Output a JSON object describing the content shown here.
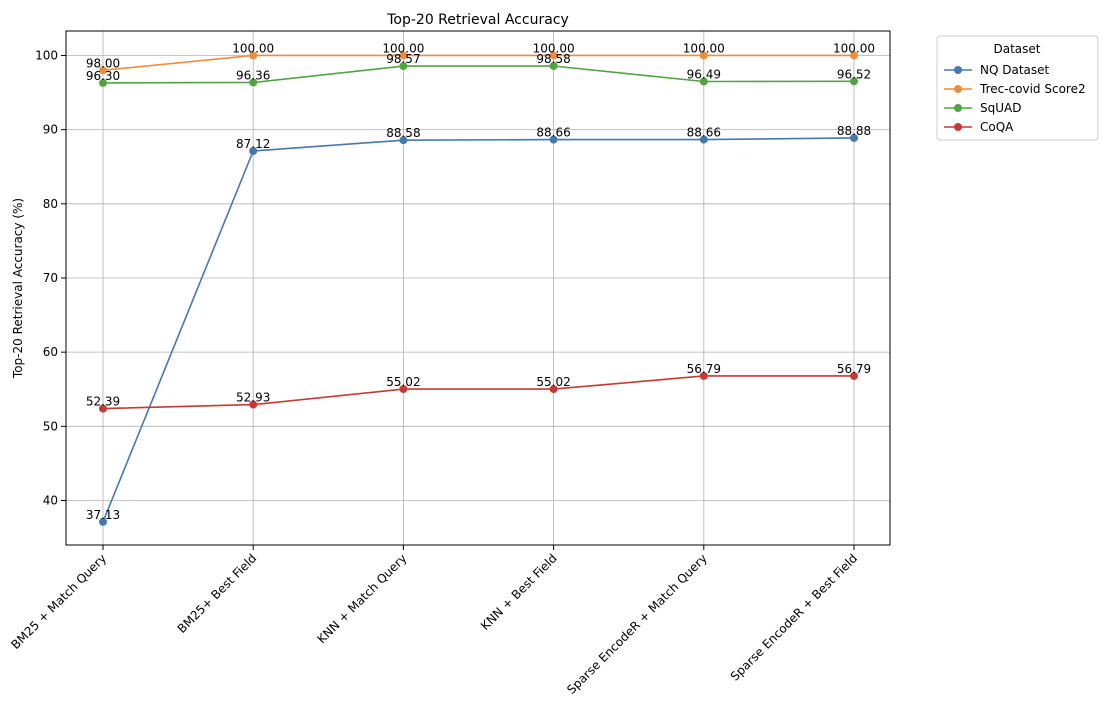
{
  "chart_data": {
    "type": "line",
    "title": "Top-20 Retrieval Accuracy",
    "xlabel": "",
    "ylabel": "Top-20 Retrieval Accuracy (%)",
    "categories": [
      "BM25 + Match Query",
      "BM25+ Best Field",
      "KNN + Match Query",
      "KNN + Best Field",
      "Sparse EncodeR + Match Query",
      "Sparse EncodeR + Best Field"
    ],
    "ylim": [
      34,
      103.3
    ],
    "yticks": [
      40,
      50,
      60,
      70,
      80,
      90,
      100
    ],
    "grid": true,
    "legend": {
      "title": "Dataset",
      "placement": "outside-top-right"
    },
    "series": [
      {
        "name": "NQ Dataset",
        "color": "#4479ae",
        "values": [
          37.13,
          87.12,
          88.58,
          88.66,
          88.66,
          88.88
        ],
        "labels": [
          "37.13",
          "87.12",
          "88.58",
          "88.66",
          "88.66",
          "88.88"
        ]
      },
      {
        "name": "Trec-covid Score2",
        "color": "#f08c3c",
        "values": [
          98.0,
          100.0,
          100.0,
          100.0,
          100.0,
          100.0
        ],
        "labels": [
          "98.00",
          "100.00",
          "100.00",
          "100.00",
          "100.00",
          "100.00"
        ]
      },
      {
        "name": "SqUAD",
        "color": "#52a343",
        "values": [
          96.3,
          96.36,
          98.57,
          98.58,
          96.49,
          96.52
        ],
        "labels": [
          "96.30",
          "96.36",
          "98.57",
          "98.58",
          "96.49",
          "96.52"
        ]
      },
      {
        "name": "CoQA",
        "color": "#c53a33",
        "values": [
          52.39,
          52.93,
          55.02,
          55.02,
          56.79,
          56.79
        ],
        "labels": [
          "52.39",
          "52.93",
          "55.02",
          "55.02",
          "56.79",
          "56.79"
        ]
      }
    ]
  }
}
